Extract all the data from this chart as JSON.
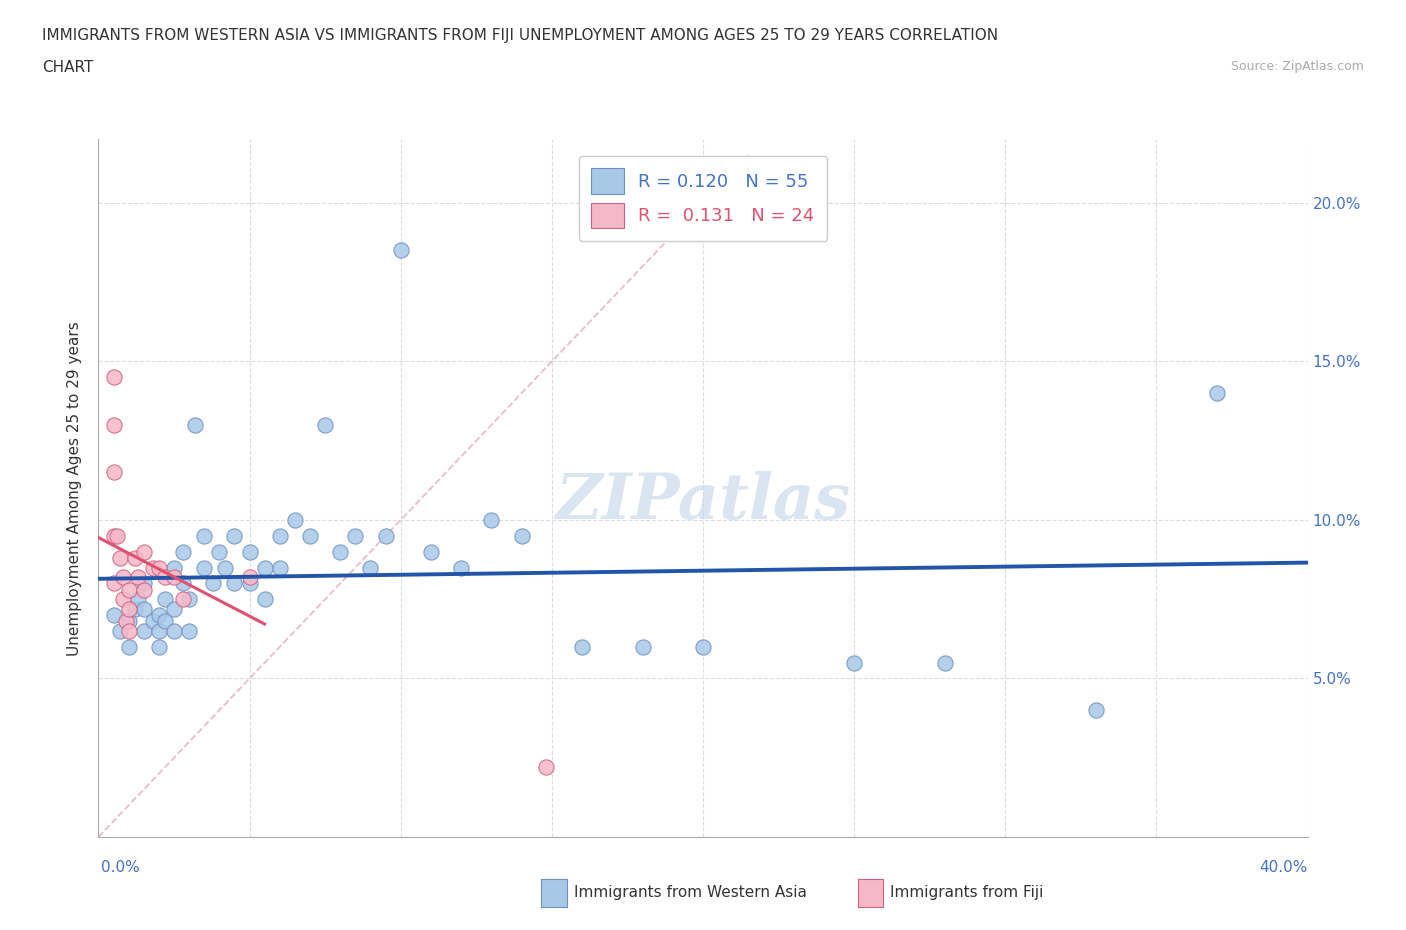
{
  "title_line1": "IMMIGRANTS FROM WESTERN ASIA VS IMMIGRANTS FROM FIJI UNEMPLOYMENT AMONG AGES 25 TO 29 YEARS CORRELATION",
  "title_line2": "CHART",
  "source": "Source: ZipAtlas.com",
  "ylabel": "Unemployment Among Ages 25 to 29 years",
  "xlim": [
    0.0,
    0.4
  ],
  "ylim": [
    0.0,
    0.22
  ],
  "xticks": [
    0.0,
    0.05,
    0.1,
    0.15,
    0.2,
    0.25,
    0.3,
    0.35,
    0.4
  ],
  "yticks": [
    0.0,
    0.05,
    0.1,
    0.15,
    0.2
  ],
  "western_asia_R": 0.12,
  "western_asia_N": 55,
  "fiji_R": 0.131,
  "fiji_N": 24,
  "western_asia_color": "#a8c8e8",
  "fiji_color": "#f5b8c8",
  "trend_western_asia_color": "#2255aa",
  "trend_fiji_color": "#e05070",
  "diagonal_color": "#e8b0bc",
  "grid_color": "#dddddd",
  "watermark_color": "#c8d8e8",
  "western_asia_x": [
    0.005,
    0.007,
    0.01,
    0.01,
    0.012,
    0.013,
    0.015,
    0.015,
    0.015,
    0.018,
    0.02,
    0.02,
    0.02,
    0.022,
    0.022,
    0.025,
    0.025,
    0.025,
    0.028,
    0.028,
    0.03,
    0.03,
    0.032,
    0.035,
    0.035,
    0.038,
    0.04,
    0.042,
    0.045,
    0.045,
    0.05,
    0.05,
    0.055,
    0.055,
    0.06,
    0.06,
    0.065,
    0.07,
    0.075,
    0.08,
    0.085,
    0.09,
    0.095,
    0.1,
    0.11,
    0.12,
    0.13,
    0.14,
    0.16,
    0.18,
    0.2,
    0.25,
    0.28,
    0.33,
    0.37
  ],
  "western_asia_y": [
    0.07,
    0.065,
    0.068,
    0.06,
    0.072,
    0.075,
    0.065,
    0.072,
    0.08,
    0.068,
    0.07,
    0.065,
    0.06,
    0.075,
    0.068,
    0.085,
    0.072,
    0.065,
    0.09,
    0.08,
    0.075,
    0.065,
    0.13,
    0.095,
    0.085,
    0.08,
    0.09,
    0.085,
    0.095,
    0.08,
    0.09,
    0.08,
    0.085,
    0.075,
    0.095,
    0.085,
    0.1,
    0.095,
    0.13,
    0.09,
    0.095,
    0.085,
    0.095,
    0.185,
    0.09,
    0.085,
    0.1,
    0.095,
    0.06,
    0.06,
    0.06,
    0.055,
    0.055,
    0.04,
    0.14
  ],
  "fiji_x": [
    0.005,
    0.005,
    0.005,
    0.005,
    0.005,
    0.006,
    0.007,
    0.008,
    0.008,
    0.009,
    0.01,
    0.01,
    0.01,
    0.012,
    0.013,
    0.015,
    0.015,
    0.018,
    0.02,
    0.022,
    0.025,
    0.028,
    0.05,
    0.148
  ],
  "fiji_y": [
    0.145,
    0.13,
    0.115,
    0.095,
    0.08,
    0.095,
    0.088,
    0.082,
    0.075,
    0.068,
    0.078,
    0.072,
    0.065,
    0.088,
    0.082,
    0.09,
    0.078,
    0.085,
    0.085,
    0.082,
    0.082,
    0.075,
    0.082,
    0.022
  ]
}
